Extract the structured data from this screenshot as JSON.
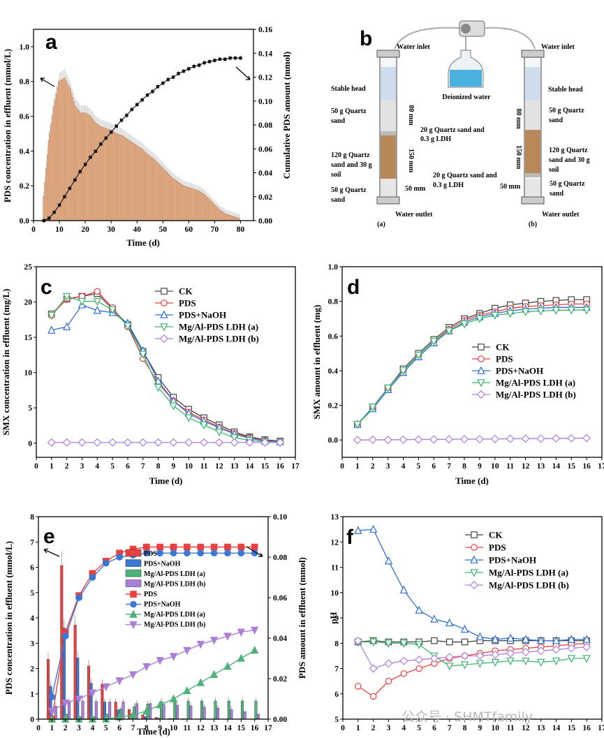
{
  "watermark": "公众号 · SHMTfamily",
  "diagram_b": {
    "label": "b",
    "deionized_water": "Deionized water",
    "left": {
      "inlet": "Water inlet",
      "outlet": "Water outlet",
      "caption": "(a)",
      "stable_head": "Stable head",
      "top_sand": "50 g Quartz sand",
      "mix": "120 g Quartz sand and 30 g soil",
      "bottom_sand": "50 g Quartz sand",
      "ldh_top": "20 g Quartz sand and 0.3 g LDH",
      "dim_top": "80 mm",
      "dim_mid": "150 mm",
      "dim_bottom": "50 mm"
    },
    "right": {
      "inlet": "Water inlet",
      "outlet": "Water outlet",
      "caption": "(b)",
      "stable_head": "Stable head",
      "top_sand": "50 g Quartz sand",
      "mix": "120 g Quartz sand and 30 g soil",
      "bottom_sand": "50 g Quartz sand",
      "ldh_bottom": "20 g Quartz sand and 0.3 g LDH",
      "dim_top": "80 mm",
      "dim_mid": "150 mm",
      "dim_bottom": "50 mm"
    }
  },
  "chart_data": [
    {
      "panel": "a",
      "type": "bar+line",
      "xlabel": "Time (d)",
      "ylabel": "PDS concentration in effluent (mmol/L)",
      "y2label": "Cumulative PDS amount (mmol)",
      "xlim": [
        0,
        85
      ],
      "ylim": [
        0,
        1.1
      ],
      "y2lim": [
        0,
        0.16
      ],
      "xticks": [
        0,
        10,
        20,
        30,
        40,
        50,
        60,
        70,
        80
      ],
      "yticks": [
        0.0,
        0.2,
        0.4,
        0.6,
        0.8,
        1.0
      ],
      "y2ticks": [
        0.0,
        0.02,
        0.04,
        0.06,
        0.08,
        0.1,
        0.12,
        0.14,
        0.16
      ],
      "bar_series": {
        "name": "",
        "x": [
          4,
          6,
          8,
          10,
          12,
          14,
          16,
          18,
          20,
          22,
          24,
          26,
          28,
          30,
          32,
          34,
          36,
          38,
          40,
          42,
          44,
          46,
          48,
          50,
          52,
          54,
          56,
          58,
          60,
          62,
          64,
          66,
          68,
          70,
          72,
          74,
          76,
          78,
          80
        ],
        "values": [
          0.14,
          0.46,
          0.66,
          0.8,
          0.82,
          0.76,
          0.66,
          0.62,
          0.62,
          0.6,
          0.56,
          0.54,
          0.53,
          0.52,
          0.5,
          0.49,
          0.47,
          0.45,
          0.43,
          0.41,
          0.38,
          0.36,
          0.33,
          0.3,
          0.27,
          0.24,
          0.22,
          0.2,
          0.19,
          0.18,
          0.17,
          0.15,
          0.12,
          0.09,
          0.06,
          0.04,
          0.03,
          0.02,
          0.01
        ]
      },
      "line_series": {
        "name": "",
        "x": [
          4,
          6,
          8,
          10,
          12,
          14,
          16,
          18,
          20,
          22,
          24,
          26,
          28,
          30,
          32,
          34,
          36,
          38,
          40,
          42,
          44,
          46,
          48,
          50,
          52,
          54,
          56,
          58,
          60,
          62,
          64,
          66,
          68,
          70,
          72,
          74,
          76,
          78,
          80
        ],
        "values": [
          0.0,
          0.002,
          0.007,
          0.013,
          0.02,
          0.027,
          0.034,
          0.041,
          0.047,
          0.053,
          0.058,
          0.064,
          0.069,
          0.074,
          0.079,
          0.084,
          0.088,
          0.093,
          0.097,
          0.101,
          0.105,
          0.108,
          0.112,
          0.115,
          0.118,
          0.12,
          0.123,
          0.125,
          0.127,
          0.129,
          0.13,
          0.132,
          0.133,
          0.134,
          0.135,
          0.135,
          0.136,
          0.136,
          0.136
        ]
      }
    },
    {
      "panel": "c",
      "type": "line",
      "xlabel": "Time (d)",
      "ylabel": "SMX concentration in effluent (mg/L)",
      "xlim": [
        0,
        17
      ],
      "ylim": [
        -2,
        25
      ],
      "xticks": [
        0,
        1,
        2,
        3,
        4,
        5,
        6,
        7,
        8,
        9,
        10,
        11,
        12,
        13,
        14,
        15,
        16,
        17
      ],
      "yticks": [
        0,
        5,
        10,
        15,
        20,
        25
      ],
      "x": [
        1,
        2,
        3,
        4,
        5,
        6,
        7,
        8,
        9,
        10,
        11,
        12,
        13,
        14,
        15,
        16
      ],
      "series": [
        {
          "name": "CK",
          "color": "#444444",
          "marker": "square",
          "values": [
            18.3,
            20.4,
            20.8,
            21.2,
            19.0,
            16.8,
            13.0,
            9.3,
            6.5,
            4.8,
            3.6,
            2.6,
            1.6,
            0.9,
            0.5,
            0.3
          ]
        },
        {
          "name": "PDS",
          "color": "#e8413f",
          "marker": "circle",
          "values": [
            18.1,
            20.5,
            20.8,
            21.5,
            19.2,
            16.5,
            12.0,
            8.5,
            6.0,
            4.4,
            3.3,
            2.3,
            1.4,
            0.8,
            0.4,
            0.2
          ]
        },
        {
          "name": "PDS+NaOH",
          "color": "#2f6fd6",
          "marker": "triangle-up",
          "values": [
            16.0,
            16.5,
            19.6,
            18.8,
            18.5,
            17.0,
            13.1,
            8.8,
            6.0,
            4.2,
            3.1,
            2.2,
            1.3,
            0.7,
            0.3,
            0.2
          ]
        },
        {
          "name": "Mg/Al-PDS LDH (a)",
          "color": "#3cb371",
          "marker": "triangle-down",
          "values": [
            18.1,
            20.8,
            20.1,
            20.1,
            18.9,
            16.6,
            12.6,
            7.9,
            5.3,
            3.6,
            2.6,
            1.6,
            0.8,
            0.4,
            0.2,
            0.1
          ]
        },
        {
          "name": "Mg/Al-PDS LDH (b)",
          "color": "#b07ee0",
          "marker": "diamond",
          "values": [
            0.1,
            0.1,
            0.1,
            0.1,
            0.1,
            0.1,
            0.1,
            0.1,
            0.1,
            0.1,
            0.1,
            0.1,
            0.1,
            0.1,
            0.1,
            0.1
          ]
        }
      ]
    },
    {
      "panel": "d",
      "type": "line",
      "xlabel": "Time (d)",
      "ylabel": "SMX amount in effluent (mg)",
      "xlim": [
        0,
        17
      ],
      "ylim": [
        -0.1,
        1.0
      ],
      "xticks": [
        0,
        1,
        2,
        3,
        4,
        5,
        6,
        7,
        8,
        9,
        10,
        11,
        12,
        13,
        14,
        15,
        16,
        17
      ],
      "yticks": [
        0.0,
        0.2,
        0.4,
        0.6,
        0.8,
        1.0
      ],
      "x": [
        1,
        2,
        3,
        4,
        5,
        6,
        7,
        8,
        9,
        10,
        11,
        12,
        13,
        14,
        15,
        16
      ],
      "series": [
        {
          "name": "CK",
          "color": "#444444",
          "marker": "square",
          "values": [
            0.09,
            0.19,
            0.3,
            0.41,
            0.5,
            0.58,
            0.65,
            0.7,
            0.73,
            0.76,
            0.78,
            0.79,
            0.8,
            0.805,
            0.81,
            0.81
          ]
        },
        {
          "name": "PDS",
          "color": "#e8413f",
          "marker": "circle",
          "values": [
            0.09,
            0.19,
            0.3,
            0.4,
            0.49,
            0.57,
            0.64,
            0.69,
            0.72,
            0.74,
            0.76,
            0.77,
            0.775,
            0.78,
            0.785,
            0.785
          ]
        },
        {
          "name": "PDS+NaOH",
          "color": "#2f6fd6",
          "marker": "triangle-up",
          "values": [
            0.09,
            0.18,
            0.29,
            0.39,
            0.48,
            0.56,
            0.63,
            0.68,
            0.71,
            0.73,
            0.745,
            0.755,
            0.76,
            0.765,
            0.765,
            0.765
          ]
        },
        {
          "name": "Mg/Al-PDS LDH (a)",
          "color": "#3cb371",
          "marker": "triangle-down",
          "values": [
            0.09,
            0.19,
            0.3,
            0.4,
            0.49,
            0.57,
            0.63,
            0.67,
            0.7,
            0.72,
            0.73,
            0.74,
            0.745,
            0.748,
            0.75,
            0.75
          ]
        },
        {
          "name": "Mg/Al-PDS LDH (b)",
          "color": "#b07ee0",
          "marker": "diamond",
          "values": [
            0.0,
            0.001,
            0.001,
            0.002,
            0.003,
            0.003,
            0.004,
            0.005,
            0.005,
            0.006,
            0.007,
            0.008,
            0.008,
            0.009,
            0.01,
            0.011
          ]
        }
      ]
    },
    {
      "panel": "e",
      "type": "bar+line",
      "xlabel": "Time (d)",
      "ylabel": "PDS concentration in effluent (mmol/L)",
      "y2label": "PDS amount in effluent (mmol)",
      "xlim": [
        0,
        17
      ],
      "ylim": [
        0,
        8
      ],
      "y2lim": [
        0,
        0.1
      ],
      "xticks": [
        0,
        1,
        2,
        3,
        4,
        5,
        6,
        7,
        8,
        9,
        10,
        11,
        12,
        13,
        14,
        15,
        16,
        17
      ],
      "yticks": [
        0,
        1,
        2,
        3,
        4,
        5,
        6,
        7,
        8
      ],
      "y2ticks": [
        0.0,
        0.02,
        0.04,
        0.06,
        0.08,
        0.1
      ],
      "x": [
        1,
        2,
        3,
        4,
        5,
        6,
        7,
        8,
        9,
        10,
        11,
        12,
        13,
        14,
        15,
        16
      ],
      "bar_series": [
        {
          "name": "PDS",
          "color": "#e8413f",
          "values": [
            2.37,
            6.07,
            3.72,
            2.1,
            1.38,
            0.68,
            0.38,
            0.17,
            0.07,
            0.03,
            0.02,
            0.01,
            0.01,
            0.01,
            0.01,
            0.01
          ]
        },
        {
          "name": "PDS+NaOH",
          "color": "#3a78d6",
          "values": [
            1.3,
            3.6,
            2.42,
            1.42,
            0.68,
            0.36,
            0.2,
            0.1,
            0.04,
            0.02,
            0.01,
            0.01,
            0.01,
            0.01,
            0.01,
            0.01
          ]
        },
        {
          "name": "Mg/Al-PDS LDH (a)",
          "color": "#4fb27a",
          "values": [
            0.1,
            0.2,
            0.1,
            0.1,
            0.2,
            0.4,
            0.5,
            0.6,
            0.7,
            0.72,
            0.72,
            0.72,
            0.72,
            0.72,
            0.72,
            0.72
          ]
        },
        {
          "name": "Mg/Al-PDS LDH (b)",
          "color": "#a97fd8",
          "values": [
            0.52,
            0.68,
            0.72,
            0.7,
            0.68,
            0.68,
            0.62,
            0.62,
            0.58,
            0.55,
            0.52,
            0.48,
            0.44,
            0.38,
            0.3,
            0.2
          ]
        }
      ],
      "line_series": [
        {
          "name": "PDS",
          "color": "#e8413f",
          "marker": "square",
          "values": [
            0.0,
            0.043,
            0.061,
            0.072,
            0.078,
            0.082,
            0.084,
            0.085,
            0.085,
            0.085,
            0.085,
            0.085,
            0.085,
            0.085,
            0.085,
            0.085
          ]
        },
        {
          "name": "PDS+NaOH",
          "color": "#3a78d6",
          "marker": "circle",
          "values": [
            0.011,
            0.041,
            0.06,
            0.07,
            0.077,
            0.08,
            0.081,
            0.082,
            0.082,
            0.082,
            0.082,
            0.082,
            0.082,
            0.082,
            0.082,
            0.082
          ]
        },
        {
          "name": "Mg/Al-PDS LDH (a)",
          "color": "#4fb27a",
          "marker": "triangle-up",
          "values": [
            0.0,
            0.0,
            0.0,
            0.0,
            0.0,
            0.001,
            0.002,
            0.004,
            0.007,
            0.01,
            0.014,
            0.018,
            0.022,
            0.026,
            0.03,
            0.034
          ]
        },
        {
          "name": "Mg/Al-PDS LDH (b)",
          "color": "#a97fd8",
          "marker": "triangle-down",
          "values": [
            0.004,
            0.008,
            0.01,
            0.013,
            0.016,
            0.019,
            0.022,
            0.026,
            0.029,
            0.031,
            0.034,
            0.037,
            0.039,
            0.041,
            0.043,
            0.044
          ]
        }
      ]
    },
    {
      "panel": "f",
      "type": "line",
      "xlabel": "Time (d)",
      "ylabel": "pH",
      "xlim": [
        0,
        17
      ],
      "ylim": [
        5,
        13
      ],
      "xticks": [
        0,
        1,
        2,
        3,
        4,
        5,
        6,
        7,
        8,
        9,
        10,
        11,
        12,
        13,
        14,
        15,
        16,
        17
      ],
      "yticks": [
        5,
        6,
        7,
        8,
        9,
        10,
        11,
        12,
        13
      ],
      "x": [
        1,
        2,
        3,
        4,
        5,
        6,
        7,
        8,
        9,
        10,
        11,
        12,
        13,
        14,
        15,
        16
      ],
      "series": [
        {
          "name": "CK",
          "color": "#444444",
          "marker": "square",
          "values": [
            8.05,
            8.1,
            8.05,
            8.05,
            8.05,
            8.1,
            8.05,
            8.05,
            8.1,
            8.1,
            8.1,
            8.1,
            8.1,
            8.1,
            8.1,
            8.1
          ]
        },
        {
          "name": "PDS",
          "color": "#e8413f",
          "marker": "circle",
          "values": [
            6.3,
            5.9,
            6.5,
            6.8,
            7.0,
            7.2,
            7.4,
            7.5,
            7.6,
            7.7,
            7.75,
            7.8,
            7.85,
            7.9,
            7.95,
            8.0
          ]
        },
        {
          "name": "PDS+NaOH",
          "color": "#2f6fd6",
          "marker": "triangle-up",
          "values": [
            12.45,
            12.5,
            11.25,
            10.1,
            9.3,
            8.95,
            8.8,
            8.55,
            8.25,
            8.15,
            8.2,
            8.15,
            8.1,
            8.1,
            8.15,
            8.15
          ]
        },
        {
          "name": "Mg/Al-PDS LDH (a)",
          "color": "#3cb371",
          "marker": "triangle-down",
          "values": [
            8.05,
            8.05,
            8.0,
            8.0,
            7.95,
            7.5,
            7.1,
            7.15,
            7.2,
            7.25,
            7.3,
            7.3,
            7.25,
            7.3,
            7.4,
            7.4
          ]
        },
        {
          "name": "Mg/Al-PDS LDH (b)",
          "color": "#b07ee0",
          "marker": "diamond",
          "values": [
            8.1,
            7.0,
            7.2,
            7.3,
            7.35,
            7.4,
            7.45,
            7.5,
            7.5,
            7.55,
            7.6,
            7.65,
            7.7,
            7.75,
            7.8,
            7.85
          ]
        }
      ]
    }
  ]
}
